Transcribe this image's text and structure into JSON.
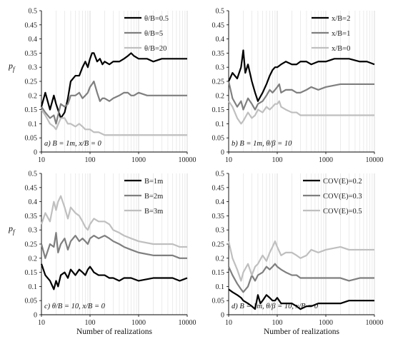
{
  "chart_data": [
    {
      "type": "line",
      "panel": "a",
      "annotation": "a) B = 1m, x/B = 0",
      "xlabel": "",
      "ylabel": "pf",
      "xlim": [
        10,
        10000
      ],
      "xscale": "log",
      "ylim": [
        0,
        0.5
      ],
      "yticks": [
        "0",
        "0.05",
        "0.1",
        "0.15",
        "0.2",
        "0.25",
        "0.3",
        "0.35",
        "0.4",
        "0.45",
        "0.5"
      ],
      "xticks": [
        "10",
        "100",
        "1000",
        "10000"
      ],
      "legend_position": "top-right",
      "series": [
        {
          "name": "θ/B=0.5",
          "color": "#000000",
          "x": [
            10,
            12,
            15,
            18,
            20,
            25,
            30,
            35,
            40,
            50,
            60,
            70,
            80,
            90,
            100,
            110,
            120,
            140,
            160,
            180,
            200,
            250,
            300,
            400,
            500,
            600,
            700,
            800,
            1000,
            1500,
            2000,
            3000,
            5000,
            7000,
            10000
          ],
          "y": [
            0.16,
            0.21,
            0.15,
            0.2,
            0.17,
            0.12,
            0.14,
            0.19,
            0.25,
            0.27,
            0.27,
            0.3,
            0.32,
            0.3,
            0.33,
            0.35,
            0.35,
            0.32,
            0.33,
            0.31,
            0.32,
            0.31,
            0.32,
            0.32,
            0.33,
            0.34,
            0.35,
            0.34,
            0.33,
            0.33,
            0.32,
            0.33,
            0.33,
            0.33,
            0.33
          ]
        },
        {
          "name": "θ/B=5",
          "color": "#7f7f7f",
          "x": [
            10,
            12,
            15,
            18,
            20,
            25,
            30,
            35,
            40,
            50,
            60,
            70,
            80,
            90,
            100,
            110,
            120,
            140,
            160,
            180,
            200,
            250,
            300,
            400,
            500,
            600,
            700,
            800,
            1000,
            1500,
            2000,
            3000,
            5000,
            7000,
            10000
          ],
          "y": [
            0.16,
            0.14,
            0.12,
            0.13,
            0.1,
            0.17,
            0.16,
            0.17,
            0.2,
            0.2,
            0.21,
            0.19,
            0.2,
            0.21,
            0.23,
            0.24,
            0.25,
            0.21,
            0.18,
            0.19,
            0.19,
            0.18,
            0.19,
            0.2,
            0.21,
            0.21,
            0.2,
            0.2,
            0.21,
            0.2,
            0.2,
            0.2,
            0.2,
            0.2,
            0.2
          ]
        },
        {
          "name": "θ/B=20",
          "color": "#bfbfbf",
          "x": [
            10,
            12,
            15,
            18,
            20,
            25,
            30,
            35,
            40,
            50,
            60,
            70,
            80,
            90,
            100,
            120,
            150,
            200,
            250,
            300,
            400,
            500,
            700,
            1000,
            2000,
            3000,
            5000,
            10000
          ],
          "y": [
            0.15,
            0.13,
            0.1,
            0.09,
            0.08,
            0.12,
            0.12,
            0.1,
            0.1,
            0.09,
            0.1,
            0.09,
            0.08,
            0.08,
            0.08,
            0.07,
            0.07,
            0.06,
            0.06,
            0.06,
            0.06,
            0.06,
            0.06,
            0.06,
            0.06,
            0.06,
            0.06,
            0.06
          ]
        }
      ]
    },
    {
      "type": "line",
      "panel": "b",
      "annotation": "b) B = 1m, θ/β = 10",
      "xlabel": "",
      "ylabel": "",
      "xlim": [
        10,
        10000
      ],
      "xscale": "log",
      "ylim": [
        0,
        0.5
      ],
      "yticks": [
        "0",
        "0.05",
        "0.1",
        "0.15",
        "0.2",
        "0.25",
        "0.3",
        "0.35",
        "0.4",
        "0.45",
        "0.5"
      ],
      "xticks": [
        "10",
        "100",
        "1000",
        "10000"
      ],
      "legend_position": "top-right",
      "series": [
        {
          "name": "x/B=2",
          "color": "#000000",
          "x": [
            10,
            12,
            15,
            18,
            20,
            22,
            25,
            30,
            35,
            40,
            50,
            60,
            70,
            80,
            90,
            100,
            120,
            150,
            200,
            250,
            300,
            400,
            500,
            700,
            1000,
            1500,
            2000,
            3000,
            5000,
            7000,
            10000
          ],
          "y": [
            0.25,
            0.28,
            0.26,
            0.3,
            0.36,
            0.28,
            0.31,
            0.25,
            0.21,
            0.18,
            0.21,
            0.24,
            0.27,
            0.29,
            0.3,
            0.3,
            0.31,
            0.32,
            0.31,
            0.31,
            0.32,
            0.32,
            0.31,
            0.32,
            0.32,
            0.33,
            0.33,
            0.33,
            0.32,
            0.32,
            0.31
          ]
        },
        {
          "name": "x/B=1",
          "color": "#7f7f7f",
          "x": [
            10,
            12,
            15,
            18,
            20,
            25,
            30,
            35,
            40,
            50,
            60,
            70,
            80,
            90,
            100,
            110,
            120,
            150,
            200,
            250,
            300,
            400,
            500,
            700,
            1000,
            2000,
            3000,
            5000,
            7000,
            10000
          ],
          "y": [
            0.25,
            0.19,
            0.16,
            0.18,
            0.15,
            0.19,
            0.17,
            0.15,
            0.17,
            0.18,
            0.2,
            0.22,
            0.21,
            0.22,
            0.23,
            0.24,
            0.21,
            0.22,
            0.22,
            0.21,
            0.21,
            0.22,
            0.23,
            0.22,
            0.23,
            0.24,
            0.24,
            0.24,
            0.24,
            0.24
          ]
        },
        {
          "name": "x/B=0",
          "color": "#bfbfbf",
          "x": [
            10,
            12,
            15,
            18,
            20,
            25,
            30,
            35,
            40,
            50,
            60,
            70,
            80,
            90,
            100,
            110,
            120,
            150,
            200,
            250,
            300,
            400,
            500,
            700,
            1000,
            2000,
            3000,
            5000,
            7000,
            10000
          ],
          "y": [
            0.18,
            0.16,
            0.12,
            0.1,
            0.11,
            0.14,
            0.12,
            0.13,
            0.15,
            0.14,
            0.16,
            0.15,
            0.16,
            0.17,
            0.17,
            0.18,
            0.16,
            0.15,
            0.14,
            0.14,
            0.13,
            0.13,
            0.13,
            0.13,
            0.13,
            0.13,
            0.13,
            0.13,
            0.13,
            0.13
          ]
        }
      ]
    },
    {
      "type": "line",
      "panel": "c",
      "annotation": "c) θ/B = 10, x/B = 0",
      "xlabel": "Number of realizations",
      "ylabel": "pf",
      "xlim": [
        10,
        10000
      ],
      "xscale": "log",
      "ylim": [
        0,
        0.5
      ],
      "yticks": [
        "0",
        "0.05",
        "0.1",
        "0.15",
        "0.2",
        "0.25",
        "0.3",
        "0.35",
        "0.4",
        "0.45",
        "0.5"
      ],
      "xticks": [
        "10",
        "100",
        "1000",
        "10000"
      ],
      "legend_position": "top-right",
      "series": [
        {
          "name": "B=1m",
          "color": "#000000",
          "x": [
            10,
            12,
            15,
            18,
            20,
            22,
            25,
            30,
            35,
            40,
            50,
            60,
            70,
            80,
            90,
            100,
            110,
            120,
            150,
            200,
            250,
            300,
            400,
            500,
            700,
            1000,
            2000,
            3000,
            5000,
            7000,
            10000
          ],
          "y": [
            0.18,
            0.14,
            0.12,
            0.09,
            0.12,
            0.1,
            0.14,
            0.15,
            0.13,
            0.16,
            0.14,
            0.16,
            0.15,
            0.14,
            0.16,
            0.17,
            0.16,
            0.15,
            0.14,
            0.14,
            0.13,
            0.13,
            0.12,
            0.13,
            0.13,
            0.12,
            0.13,
            0.13,
            0.13,
            0.12,
            0.13
          ]
        },
        {
          "name": "B=2m",
          "color": "#7f7f7f",
          "x": [
            10,
            12,
            15,
            18,
            20,
            22,
            25,
            30,
            35,
            40,
            50,
            60,
            70,
            80,
            90,
            100,
            120,
            150,
            200,
            250,
            300,
            400,
            500,
            700,
            1000,
            2000,
            3000,
            5000,
            7000,
            10000
          ],
          "y": [
            0.25,
            0.2,
            0.25,
            0.24,
            0.29,
            0.22,
            0.25,
            0.27,
            0.23,
            0.26,
            0.28,
            0.26,
            0.27,
            0.26,
            0.25,
            0.27,
            0.28,
            0.27,
            0.28,
            0.27,
            0.26,
            0.25,
            0.24,
            0.23,
            0.22,
            0.21,
            0.21,
            0.21,
            0.2,
            0.2
          ]
        },
        {
          "name": "B=3m",
          "color": "#bfbfbf",
          "x": [
            10,
            12,
            15,
            18,
            20,
            22,
            25,
            30,
            35,
            40,
            50,
            60,
            70,
            80,
            90,
            100,
            120,
            150,
            200,
            250,
            300,
            400,
            500,
            700,
            1000,
            2000,
            3000,
            5000,
            7000,
            10000
          ],
          "y": [
            0.32,
            0.36,
            0.33,
            0.4,
            0.37,
            0.4,
            0.42,
            0.38,
            0.34,
            0.38,
            0.36,
            0.35,
            0.33,
            0.31,
            0.3,
            0.32,
            0.34,
            0.33,
            0.33,
            0.32,
            0.3,
            0.29,
            0.28,
            0.27,
            0.26,
            0.25,
            0.25,
            0.25,
            0.24,
            0.24
          ]
        }
      ]
    },
    {
      "type": "line",
      "panel": "d",
      "annotation": "d) B = 1m, θ/β = 10, x/B = 0",
      "xlabel": "Number of realizations",
      "ylabel": "",
      "xlim": [
        10,
        10000
      ],
      "xscale": "log",
      "ylim": [
        0,
        0.5
      ],
      "yticks": [
        "0",
        "0.05",
        "0.1",
        "0.15",
        "0.2",
        "0.25",
        "0.3",
        "0.35",
        "0.4",
        "0.45",
        "0.5"
      ],
      "xticks": [
        "10",
        "100",
        "1000",
        "10000"
      ],
      "legend_position": "top-right",
      "series": [
        {
          "name": "COV(E)=0.2",
          "color": "#000000",
          "x": [
            10,
            12,
            15,
            18,
            20,
            25,
            30,
            35,
            40,
            45,
            50,
            60,
            70,
            80,
            90,
            100,
            120,
            150,
            200,
            250,
            300,
            400,
            500,
            700,
            1000,
            2000,
            3000,
            5000,
            7000,
            10000
          ],
          "y": [
            0.09,
            0.08,
            0.07,
            0.06,
            0.05,
            0.04,
            0.03,
            0.02,
            0.07,
            0.04,
            0.05,
            0.07,
            0.06,
            0.05,
            0.05,
            0.06,
            0.04,
            0.04,
            0.04,
            0.03,
            0.02,
            0.03,
            0.03,
            0.04,
            0.04,
            0.04,
            0.05,
            0.05,
            0.05,
            0.05
          ]
        },
        {
          "name": "COV(E)=0.3",
          "color": "#7f7f7f",
          "x": [
            10,
            12,
            15,
            18,
            20,
            25,
            30,
            35,
            40,
            50,
            60,
            70,
            80,
            90,
            100,
            120,
            150,
            200,
            250,
            300,
            400,
            500,
            700,
            1000,
            2000,
            3000,
            5000,
            7000,
            10000
          ],
          "y": [
            0.17,
            0.14,
            0.11,
            0.09,
            0.08,
            0.1,
            0.14,
            0.12,
            0.14,
            0.15,
            0.17,
            0.16,
            0.17,
            0.18,
            0.17,
            0.16,
            0.15,
            0.14,
            0.14,
            0.13,
            0.13,
            0.13,
            0.13,
            0.13,
            0.13,
            0.12,
            0.13,
            0.13,
            0.13
          ]
        },
        {
          "name": "COV(E)=0.5",
          "color": "#bfbfbf",
          "x": [
            10,
            12,
            15,
            18,
            20,
            25,
            30,
            35,
            40,
            50,
            60,
            70,
            80,
            90,
            100,
            120,
            150,
            200,
            250,
            300,
            400,
            500,
            700,
            1000,
            2000,
            3000,
            5000,
            7000,
            10000
          ],
          "y": [
            0.26,
            0.2,
            0.16,
            0.12,
            0.15,
            0.18,
            0.14,
            0.17,
            0.18,
            0.21,
            0.19,
            0.22,
            0.24,
            0.26,
            0.24,
            0.21,
            0.22,
            0.22,
            0.21,
            0.2,
            0.21,
            0.23,
            0.22,
            0.23,
            0.24,
            0.23,
            0.23,
            0.23,
            0.23
          ]
        }
      ]
    }
  ]
}
